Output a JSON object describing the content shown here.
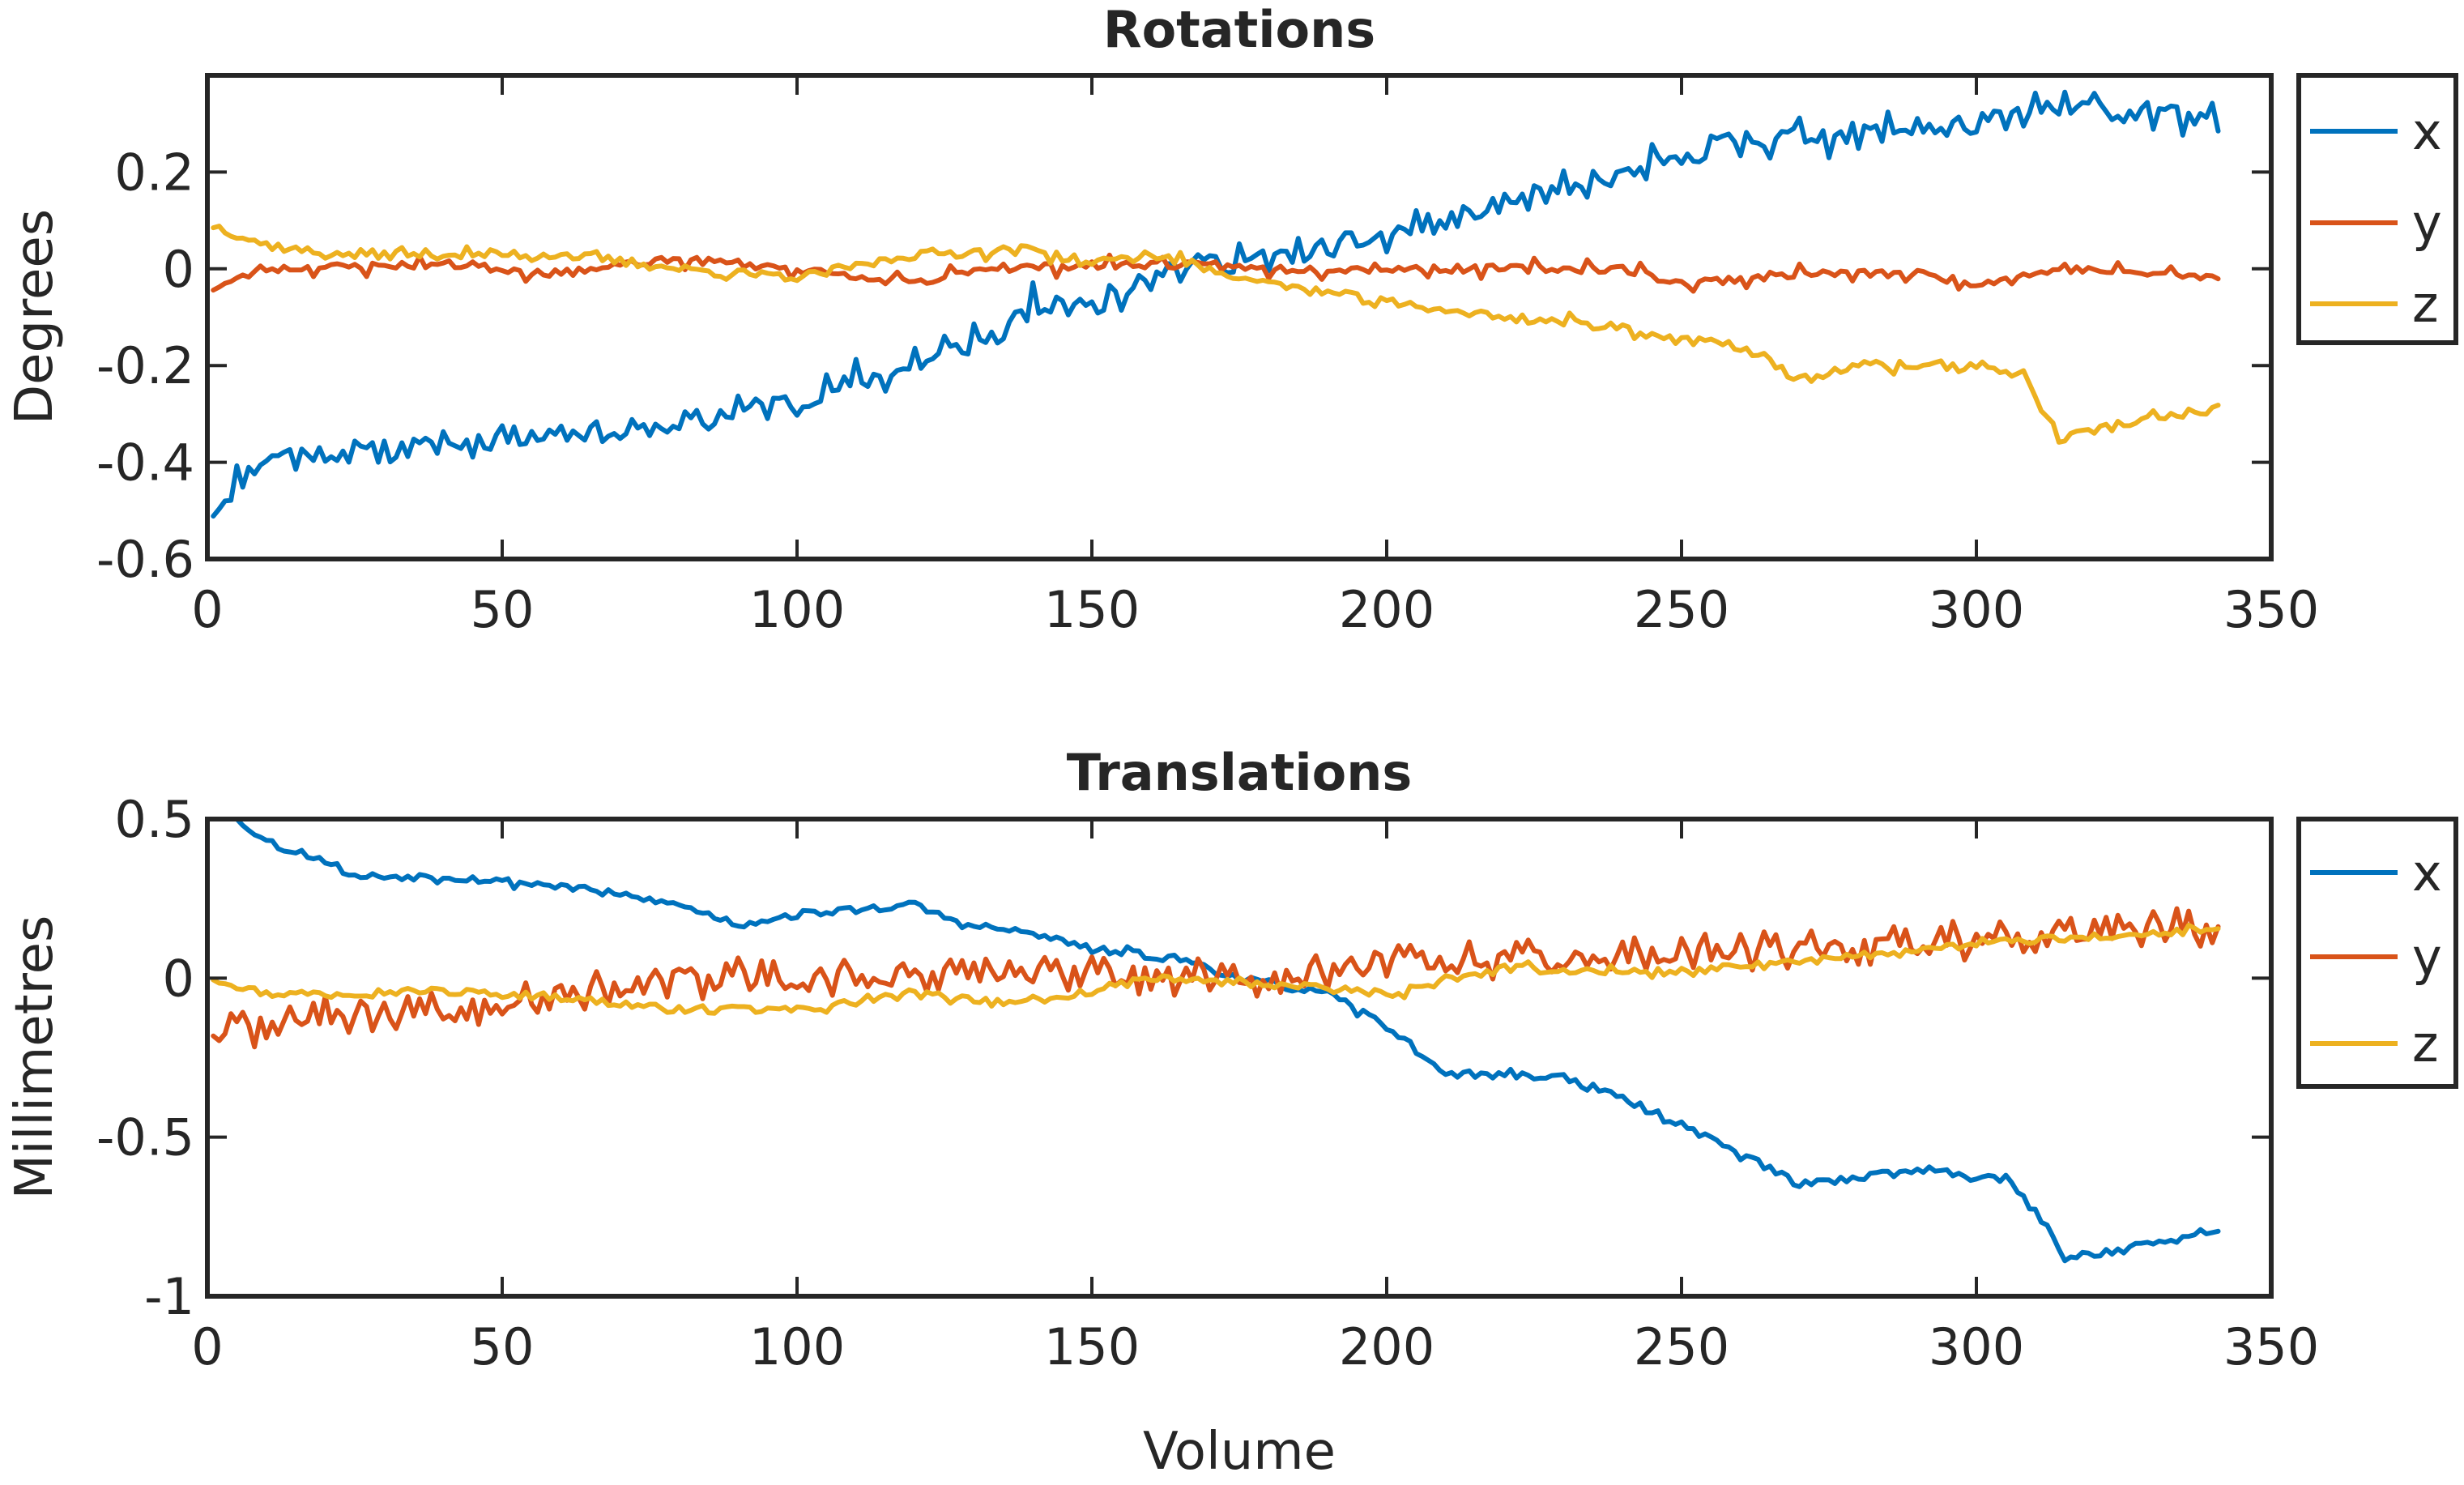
{
  "figure": {
    "xlabel": "Volume"
  },
  "colors": {
    "x": "#0072BD",
    "y": "#D95319",
    "z": "#EDB120",
    "axis": "#262626"
  },
  "chart_data": [
    {
      "type": "line",
      "title": "Rotations",
      "xlabel": "",
      "ylabel": "Degrees",
      "xlim": [
        0,
        350
      ],
      "ylim": [
        -0.6,
        0.4
      ],
      "xticks": [
        0,
        50,
        100,
        150,
        200,
        250,
        300,
        350
      ],
      "xtick_labels": [
        "0",
        "50",
        "100",
        "150",
        "200",
        "250",
        "300",
        "350"
      ],
      "yticks": [
        -0.6,
        -0.4,
        -0.2,
        0,
        0.2
      ],
      "ytick_labels": [
        "-0.6",
        "-0.4",
        "-0.2",
        "0",
        "0.2"
      ],
      "grid": false,
      "legend": "outside-right",
      "x_range": [
        1,
        341
      ],
      "series": [
        {
          "name": "x",
          "color": "#0072BD",
          "anchors": [
            [
              1,
              -0.5
            ],
            [
              10,
              -0.38
            ],
            [
              30,
              -0.38
            ],
            [
              50,
              -0.35
            ],
            [
              75,
              -0.33
            ],
            [
              100,
              -0.27
            ],
            [
              120,
              -0.2
            ],
            [
              135,
              -0.13
            ],
            [
              140,
              -0.08
            ],
            [
              150,
              -0.08
            ],
            [
              160,
              0.0
            ],
            [
              170,
              0.01
            ],
            [
              180,
              0.02
            ],
            [
              200,
              0.07
            ],
            [
              220,
              0.13
            ],
            [
              235,
              0.17
            ],
            [
              250,
              0.23
            ],
            [
              260,
              0.27
            ],
            [
              280,
              0.28
            ],
            [
              300,
              0.3
            ],
            [
              315,
              0.33
            ],
            [
              330,
              0.33
            ],
            [
              341,
              0.29
            ]
          ],
          "noise": 0.022,
          "spike_every": 5,
          "spike_amp": 0.03,
          "seed": 11
        },
        {
          "name": "y",
          "color": "#D95319",
          "anchors": [
            [
              1,
              -0.04
            ],
            [
              10,
              0.0
            ],
            [
              40,
              0.01
            ],
            [
              60,
              -0.01
            ],
            [
              80,
              0.02
            ],
            [
              100,
              0.0
            ],
            [
              110,
              -0.02
            ],
            [
              122,
              -0.03
            ],
            [
              130,
              0.0
            ],
            [
              160,
              0.01
            ],
            [
              180,
              0.0
            ],
            [
              200,
              0.0
            ],
            [
              210,
              0.0
            ],
            [
              240,
              0.0
            ],
            [
              250,
              -0.03
            ],
            [
              270,
              -0.01
            ],
            [
              290,
              -0.01
            ],
            [
              300,
              -0.03
            ],
            [
              315,
              0.0
            ],
            [
              330,
              -0.01
            ],
            [
              341,
              -0.02
            ]
          ],
          "noise": 0.008,
          "spike_every": 9,
          "spike_amp": 0.015,
          "seed": 23
        },
        {
          "name": "z",
          "color": "#EDB120",
          "anchors": [
            [
              1,
              0.09
            ],
            [
              10,
              0.05
            ],
            [
              20,
              0.03
            ],
            [
              40,
              0.03
            ],
            [
              60,
              0.03
            ],
            [
              80,
              0.0
            ],
            [
              100,
              -0.02
            ],
            [
              120,
              0.03
            ],
            [
              140,
              0.04
            ],
            [
              150,
              0.01
            ],
            [
              160,
              0.03
            ],
            [
              180,
              -0.03
            ],
            [
              200,
              -0.07
            ],
            [
              220,
              -0.1
            ],
            [
              240,
              -0.12
            ],
            [
              250,
              -0.15
            ],
            [
              260,
              -0.16
            ],
            [
              270,
              -0.23
            ],
            [
              280,
              -0.2
            ],
            [
              300,
              -0.2
            ],
            [
              308,
              -0.22
            ],
            [
              314,
              -0.35
            ],
            [
              325,
              -0.32
            ],
            [
              341,
              -0.29
            ]
          ],
          "noise": 0.01,
          "spike_every": 11,
          "spike_amp": 0.01,
          "seed": 37
        }
      ]
    },
    {
      "type": "line",
      "title": "Translations",
      "xlabel": "Volume",
      "ylabel": "Millimetres",
      "xlim": [
        0,
        350
      ],
      "ylim": [
        -1,
        0.5
      ],
      "xticks": [
        0,
        50,
        100,
        150,
        200,
        250,
        300,
        350
      ],
      "xtick_labels": [
        "0",
        "50",
        "100",
        "150",
        "200",
        "250",
        "300",
        "350"
      ],
      "yticks": [
        -1,
        -0.5,
        0,
        0.5
      ],
      "ytick_labels": [
        "-1",
        "-0.5",
        "0",
        "0.5"
      ],
      "grid": false,
      "legend": "outside-right",
      "x_range": [
        1,
        341
      ],
      "series": [
        {
          "name": "x",
          "color": "#0072BD",
          "anchors": [
            [
              1,
              0.52
            ],
            [
              5,
              0.5
            ],
            [
              10,
              0.43
            ],
            [
              20,
              0.37
            ],
            [
              25,
              0.32
            ],
            [
              40,
              0.32
            ],
            [
              60,
              0.29
            ],
            [
              80,
              0.23
            ],
            [
              90,
              0.17
            ],
            [
              100,
              0.2
            ],
            [
              120,
              0.23
            ],
            [
              128,
              0.17
            ],
            [
              140,
              0.14
            ],
            [
              150,
              0.09
            ],
            [
              165,
              0.06
            ],
            [
              175,
              0.0
            ],
            [
              190,
              -0.05
            ],
            [
              200,
              -0.15
            ],
            [
              210,
              -0.3
            ],
            [
              230,
              -0.31
            ],
            [
              240,
              -0.38
            ],
            [
              250,
              -0.46
            ],
            [
              260,
              -0.55
            ],
            [
              270,
              -0.65
            ],
            [
              290,
              -0.6
            ],
            [
              305,
              -0.63
            ],
            [
              312,
              -0.78
            ],
            [
              315,
              -0.88
            ],
            [
              325,
              -0.85
            ],
            [
              341,
              -0.8
            ]
          ],
          "noise": 0.012,
          "spike_every": 13,
          "spike_amp": 0.01,
          "seed": 53
        },
        {
          "name": "y",
          "color": "#D95319",
          "anchors": [
            [
              1,
              -0.17
            ],
            [
              20,
              -0.12
            ],
            [
              40,
              -0.1
            ],
            [
              60,
              -0.05
            ],
            [
              80,
              0.0
            ],
            [
              100,
              0.0
            ],
            [
              150,
              0.02
            ],
            [
              175,
              0.0
            ],
            [
              200,
              0.05
            ],
            [
              220,
              0.06
            ],
            [
              260,
              0.08
            ],
            [
              300,
              0.12
            ],
            [
              330,
              0.15
            ],
            [
              341,
              0.16
            ]
          ],
          "noise": 0.025,
          "spike_every": 2,
          "spike_amp": 0.04,
          "seed": 71
        },
        {
          "name": "z",
          "color": "#EDB120",
          "anchors": [
            [
              1,
              0.0
            ],
            [
              10,
              -0.05
            ],
            [
              40,
              -0.04
            ],
            [
              60,
              -0.06
            ],
            [
              80,
              -0.1
            ],
            [
              100,
              -0.1
            ],
            [
              120,
              -0.05
            ],
            [
              140,
              -0.08
            ],
            [
              160,
              0.0
            ],
            [
              180,
              -0.02
            ],
            [
              200,
              -0.05
            ],
            [
              220,
              0.03
            ],
            [
              240,
              0.02
            ],
            [
              250,
              0.02
            ],
            [
              270,
              0.05
            ],
            [
              290,
              0.09
            ],
            [
              310,
              0.12
            ],
            [
              341,
              0.15
            ]
          ],
          "noise": 0.012,
          "spike_every": 7,
          "spike_amp": 0.012,
          "seed": 97
        }
      ]
    }
  ]
}
